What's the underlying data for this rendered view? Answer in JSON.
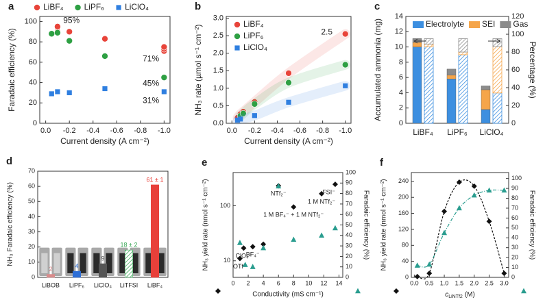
{
  "chart_data": [
    {
      "type": "scatter",
      "panel_label": "a",
      "x_label": "Current density (A cm⁻²)",
      "y_label": "Faradaic efficiency (%)",
      "xlim": [
        0.05,
        -1.05
      ],
      "xticks": [
        {
          "value": 0,
          "label": "0.0"
        },
        -0.2,
        -0.4,
        -0.6,
        -0.8,
        {
          "value": -1,
          "label": "-1.0"
        }
      ],
      "ylim": [
        0,
        105
      ],
      "yticks": [
        0,
        20,
        40,
        60,
        80,
        100
      ],
      "legend": "top",
      "annotations": [
        "95%",
        "71%",
        "45%",
        "31%"
      ],
      "series": [
        {
          "name": "LiBF₄",
          "color": "#e8443a",
          "marker": "circle",
          "x": [
            -0.05,
            -0.1,
            -0.1,
            -0.2,
            -0.5,
            -1,
            -1,
            -1
          ],
          "values": [
            88,
            90,
            95,
            90,
            83,
            71,
            73,
            75
          ]
        },
        {
          "name": "LiPF₆",
          "color": "#2ea043",
          "marker": "circle",
          "x": [
            -0.05,
            -0.1,
            -0.2,
            -0.5,
            -1
          ],
          "values": [
            88,
            89,
            81,
            66,
            45
          ]
        },
        {
          "name": "LiClO₄",
          "color": "#2f7fe0",
          "marker": "square",
          "x": [
            -0.05,
            -0.1,
            -0.2,
            -0.5,
            -1
          ],
          "values": [
            29,
            31,
            30,
            34,
            31
          ]
        }
      ]
    },
    {
      "type": "line",
      "panel_label": "b",
      "x_label": "Current density (A cm⁻²)",
      "y_label": "NH₃ rate (µmol s⁻¹ cm⁻²)",
      "xlim": [
        0.05,
        -1.05
      ],
      "xticks": [
        {
          "value": 0,
          "label": "0.0"
        },
        -0.2,
        -0.4,
        -0.6,
        -0.8,
        {
          "value": -1,
          "label": "-1.0"
        }
      ],
      "ylim": [
        0,
        3.05
      ],
      "yticks": [
        {
          "value": 0,
          "label": "0.0"
        },
        0.5,
        {
          "value": 1,
          "label": "1.0"
        },
        1.5,
        {
          "value": 2,
          "label": "2.0"
        },
        2.5,
        {
          "value": 3,
          "label": "3.0"
        }
      ],
      "legend": "upper left",
      "annotations": [
        "2.5"
      ],
      "series": [
        {
          "name": "LiBF₄",
          "color": "#e8443a",
          "marker": "circle",
          "line_style": "band",
          "x": [
            -0.05,
            -0.075,
            -0.1,
            -0.2,
            -0.5,
            -1
          ],
          "values": [
            0.16,
            0.26,
            0.33,
            0.61,
            1.43,
            2.55
          ]
        },
        {
          "name": "LiPF₆",
          "color": "#2ea043",
          "marker": "circle",
          "line_style": "band",
          "x": [
            -0.075,
            -0.1,
            -0.2,
            -0.5,
            -1
          ],
          "values": [
            0.21,
            0.28,
            0.55,
            1.16,
            1.67
          ]
        },
        {
          "name": "LiClO₄",
          "color": "#2f7fe0",
          "marker": "square",
          "line_style": "band",
          "x": [
            -0.05,
            -0.075,
            -0.2,
            -0.5,
            -1
          ],
          "values": [
            0.09,
            0.12,
            0.22,
            0.6,
            1.07
          ]
        }
      ]
    },
    {
      "type": "bar",
      "stacked": true,
      "panel_label": "c",
      "y_label": "Accumulated ammonia (mg)",
      "y2_label": "Percentage (%)",
      "categories": [
        "LiBF₄",
        "LiPF₆",
        "LiClO₄"
      ],
      "ylim": [
        0,
        14
      ],
      "yticks": [
        0,
        2,
        4,
        6,
        8,
        10,
        12,
        14
      ],
      "y2lim": [
        0,
        120
      ],
      "y2ticks": [
        0,
        20,
        40,
        60,
        80,
        100,
        120
      ],
      "legend": "upper center",
      "series": [
        {
          "name": "Electrolyte",
          "color": "#3d8fe0",
          "values": [
            10.0,
            5.8,
            1.8
          ],
          "y2_values": [
            86,
            77,
            34
          ]
        },
        {
          "name": "SEI",
          "color": "#f5a54a",
          "values": [
            0.6,
            0.5,
            2.6
          ],
          "y2_values": [
            3,
            3,
            52
          ]
        },
        {
          "name": "Gas",
          "color": "#8c8c8c",
          "values": [
            0.5,
            0.8,
            0.5
          ],
          "y2_values": [
            6,
            15,
            9
          ]
        }
      ]
    },
    {
      "type": "bar",
      "panel_label": "d",
      "y_label": "NH₃ Faradaic efficiency (%)",
      "categories": [
        "LiBOB",
        "LiPF₆",
        "LiClO₄",
        "LiTFSI",
        "LiBF₄"
      ],
      "values": [
        2,
        4,
        9,
        18,
        61
      ],
      "value_labels": [
        "2",
        "4",
        "9",
        "18 ± 2",
        "61 ± 1"
      ],
      "colors": [
        "#d98b8b",
        "#2e6fd6",
        "#555555",
        "#3aa857",
        "#e8403a"
      ],
      "hatch": [
        false,
        false,
        false,
        true,
        false
      ],
      "ylim": [
        0,
        70
      ],
      "yticks": [
        0,
        10,
        20,
        30,
        40,
        50,
        60,
        70
      ]
    },
    {
      "type": "scatter",
      "panel_label": "e",
      "x_label": "Conductivity (mS cm⁻¹)",
      "y_label": "NH₃ yield rate (nmol s⁻¹ cm⁻²)",
      "y2_label": "Faradaic efficiency (%)",
      "xlim": [
        0,
        14.5
      ],
      "xticks": [
        0,
        2,
        4,
        6,
        8,
        10,
        12,
        14
      ],
      "ylog": true,
      "ylim": [
        5,
        400
      ],
      "yticks": [
        10,
        100
      ],
      "y2lim": [
        0,
        100
      ],
      "y2ticks": [
        0,
        10,
        20,
        30,
        40,
        50,
        60,
        70,
        80,
        90,
        100
      ],
      "series": [
        {
          "color": "#111111",
          "marker": "diamond",
          "x": [
            0.9,
            1.4,
            2.6,
            4.0,
            6.0,
            8.0,
            11.7,
            13.5
          ],
          "values": [
            11,
            17,
            18,
            20,
            230,
            95,
            165,
            245
          ],
          "point_labels": [
            "OTf⁻",
            "ClO₄⁻",
            "BF₄⁻",
            null,
            "NTf₂⁻",
            "1 M BF₄⁻ + 1 M NTf₂⁻",
            "1 M NTf₂⁻",
            "FSI⁻"
          ]
        },
        {
          "color": "#2a9d8f",
          "marker": "triangle",
          "axis": "y2",
          "x": [
            0.9,
            1.6,
            2.6,
            4.0,
            6.0,
            8.0,
            11.7,
            13.5
          ],
          "values": [
            33,
            12,
            10,
            28,
            87,
            36,
            40,
            47
          ]
        }
      ]
    },
    {
      "type": "line",
      "panel_label": "f",
      "x_label": {
        "symbol": "c",
        "subscript": "LiNTf2",
        "unit": "(M)"
      },
      "y_label": "NH₃ yield rate (nmol s⁻¹ cm⁻²)",
      "y2_label": "Faradaic efficiency (%)",
      "xlim": [
        -0.1,
        3.15
      ],
      "xticks": [
        {
          "value": 0,
          "label": "0.0"
        },
        0.5,
        {
          "value": 1,
          "label": "1.0"
        },
        1.5,
        {
          "value": 2,
          "label": "2.0"
        },
        2.5,
        {
          "value": 3,
          "label": "3.0"
        }
      ],
      "ylim": [
        0,
        262
      ],
      "yticks": [
        0,
        40,
        80,
        120,
        160,
        200,
        240
      ],
      "y2lim": [
        0,
        106
      ],
      "y2ticks": [
        0,
        10,
        20,
        30,
        40,
        50,
        60,
        70,
        80,
        90,
        100
      ],
      "series": [
        {
          "color": "#111111",
          "marker": "diamond",
          "line_style": "dashed",
          "x": [
            0.1,
            0.5,
            1.0,
            1.5,
            2.0,
            2.5,
            3.0
          ],
          "values": [
            2,
            10,
            165,
            238,
            228,
            140,
            10
          ]
        },
        {
          "color": "#2a9d8f",
          "marker": "triangle",
          "line_style": "dash-dot",
          "axis": "y2",
          "x": [
            0.1,
            0.5,
            1.0,
            1.5,
            2.0,
            2.5,
            3.0
          ],
          "values": [
            12,
            13,
            45,
            70,
            83,
            88,
            88
          ]
        }
      ]
    }
  ]
}
